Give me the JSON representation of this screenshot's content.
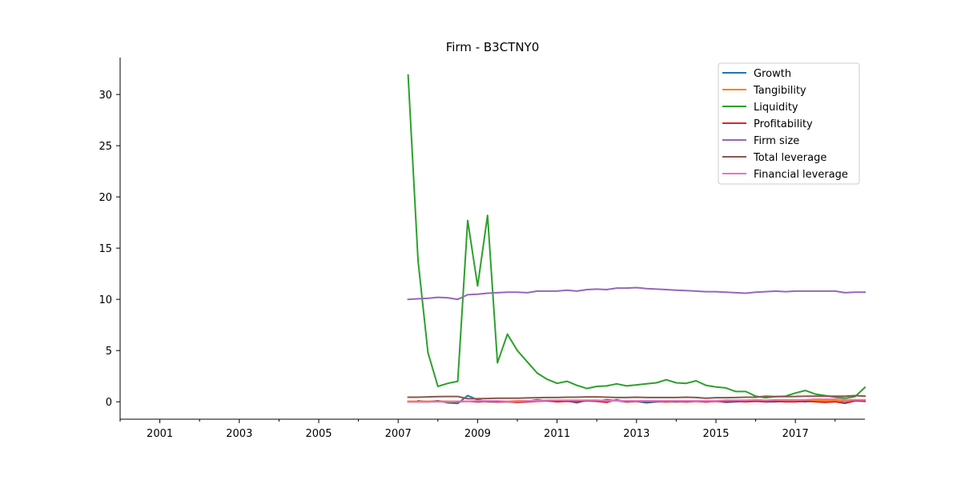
{
  "chart_data": {
    "type": "line",
    "title": "Firm - B3CTNY0",
    "xlabel": "",
    "ylabel": "",
    "xlim": [
      2000,
      2018.75
    ],
    "ylim": [
      -1.7,
      33.6
    ],
    "x_ticks": [
      2001,
      2003,
      2005,
      2007,
      2009,
      2011,
      2013,
      2015,
      2017
    ],
    "y_ticks": [
      0,
      5,
      10,
      15,
      20,
      25,
      30
    ],
    "legend_position": "top-right",
    "grid": false,
    "series": [
      {
        "name": "Growth",
        "color": "#1f77b4",
        "x": [
          2007.5,
          2007.75,
          2008.0,
          2008.25,
          2008.5,
          2008.75,
          2009.0,
          2009.25,
          2009.5,
          2009.75,
          2010.0,
          2010.25,
          2010.5,
          2010.75,
          2011.0,
          2011.25,
          2011.5,
          2011.75,
          2012.0,
          2012.25,
          2012.5,
          2012.75,
          2013.0,
          2013.25,
          2013.5,
          2013.75,
          2014.0,
          2014.25,
          2014.5,
          2014.75,
          2015.0,
          2015.25,
          2015.5,
          2015.75,
          2016.0,
          2016.25,
          2016.5,
          2016.75,
          2017.0,
          2017.25,
          2017.5,
          2017.75,
          2018.0,
          2018.25,
          2018.5,
          2018.75
        ],
        "y": [
          0.1,
          0.0,
          0.1,
          -0.1,
          -0.15,
          0.6,
          0.2,
          0.0,
          0.0,
          0.05,
          0.0,
          0.05,
          0.2,
          0.1,
          0.05,
          0.1,
          -0.1,
          0.15,
          0.05,
          0.2,
          0.1,
          0.0,
          0.05,
          -0.1,
          0.0,
          0.05,
          0.0,
          0.05,
          0.1,
          0.0,
          0.1,
          -0.05,
          0.0,
          0.05,
          0.1,
          0.0,
          0.0,
          0.05,
          0.1,
          0.0,
          0.1,
          0.0,
          0.05,
          -0.1,
          0.2,
          0.1
        ]
      },
      {
        "name": "Tangibility",
        "color": "#ff7f0e",
        "x": [
          2007.25,
          2007.5,
          2007.75,
          2008.0,
          2008.25,
          2008.5,
          2008.75,
          2009.0,
          2009.25,
          2009.5,
          2009.75,
          2010.0,
          2010.25,
          2010.5,
          2010.75,
          2011.0,
          2011.25,
          2011.5,
          2011.75,
          2012.0,
          2012.25,
          2012.5,
          2012.75,
          2013.0,
          2013.25,
          2013.5,
          2013.75,
          2014.0,
          2014.25,
          2014.5,
          2014.75,
          2015.0,
          2015.25,
          2015.5,
          2015.75,
          2016.0,
          2016.25,
          2016.5,
          2016.75,
          2017.0,
          2017.25,
          2017.5,
          2017.75,
          2018.0,
          2018.25,
          2018.5,
          2018.75
        ],
        "y": [
          0.05,
          0.05,
          0.05,
          0.05,
          0.05,
          0.05,
          0.05,
          0.05,
          0.05,
          0.05,
          0.05,
          0.1,
          0.1,
          0.1,
          0.1,
          0.1,
          0.1,
          0.1,
          0.1,
          0.1,
          0.1,
          0.1,
          0.1,
          0.1,
          0.1,
          0.1,
          0.1,
          0.1,
          0.1,
          0.1,
          0.1,
          0.1,
          0.1,
          0.1,
          0.1,
          0.1,
          0.1,
          0.1,
          0.1,
          0.1,
          0.1,
          0.1,
          0.1,
          0.1,
          0.1,
          0.1,
          0.1
        ]
      },
      {
        "name": "Liquidity",
        "color": "#2ca02c",
        "x": [
          2007.25,
          2007.5,
          2007.75,
          2008.0,
          2008.25,
          2008.5,
          2008.75,
          2009.0,
          2009.25,
          2009.5,
          2009.75,
          2010.0,
          2010.25,
          2010.5,
          2010.75,
          2011.0,
          2011.25,
          2011.5,
          2011.75,
          2012.0,
          2012.25,
          2012.5,
          2012.75,
          2013.0,
          2013.25,
          2013.5,
          2013.75,
          2014.0,
          2014.25,
          2014.5,
          2014.75,
          2015.0,
          2015.25,
          2015.5,
          2015.75,
          2016.0,
          2016.25,
          2016.5,
          2016.75,
          2017.0,
          2017.25,
          2017.5,
          2017.75,
          2018.0,
          2018.25,
          2018.5,
          2018.75
        ],
        "y": [
          31.9,
          13.8,
          4.8,
          1.5,
          1.8,
          2.0,
          17.7,
          11.3,
          18.2,
          3.8,
          6.6,
          5.0,
          3.9,
          2.8,
          2.2,
          1.8,
          2.0,
          1.6,
          1.3,
          1.5,
          1.55,
          1.75,
          1.55,
          1.65,
          1.75,
          1.85,
          2.15,
          1.85,
          1.8,
          2.05,
          1.6,
          1.45,
          1.35,
          1.0,
          1.0,
          0.55,
          0.4,
          0.5,
          0.55,
          0.85,
          1.1,
          0.75,
          0.6,
          0.45,
          0.35,
          0.5,
          1.4
        ]
      },
      {
        "name": "Profitability",
        "color": "#d62728",
        "x": [
          2007.25,
          2007.5,
          2007.75,
          2008.0,
          2008.25,
          2008.5,
          2008.75,
          2009.0,
          2009.25,
          2009.5,
          2009.75,
          2010.0,
          2010.25,
          2010.5,
          2010.75,
          2011.0,
          2011.25,
          2011.5,
          2011.75,
          2012.0,
          2012.25,
          2012.5,
          2012.75,
          2013.0,
          2013.25,
          2013.5,
          2013.75,
          2014.0,
          2014.25,
          2014.5,
          2014.75,
          2015.0,
          2015.25,
          2015.5,
          2015.75,
          2016.0,
          2016.25,
          2016.5,
          2016.75,
          2017.0,
          2017.25,
          2017.5,
          2017.75,
          2018.0,
          2018.25,
          2018.5,
          2018.75
        ],
        "y": [
          0.0,
          0.0,
          0.0,
          0.05,
          0.0,
          0.0,
          0.05,
          0.0,
          0.05,
          0.0,
          0.0,
          -0.05,
          0.0,
          0.05,
          0.1,
          0.0,
          0.05,
          0.0,
          0.1,
          0.05,
          -0.05,
          0.2,
          0.0,
          0.05,
          0.05,
          0.05,
          0.0,
          0.05,
          0.0,
          0.05,
          0.0,
          0.05,
          0.0,
          0.05,
          0.0,
          0.05,
          0.0,
          0.05,
          0.0,
          0.0,
          0.05,
          0.0,
          -0.05,
          0.0,
          -0.15,
          0.1,
          0.05
        ]
      },
      {
        "name": "Firm size",
        "color": "#9467bd",
        "x": [
          2007.25,
          2007.5,
          2007.75,
          2008.0,
          2008.25,
          2008.5,
          2008.75,
          2009.0,
          2009.25,
          2009.5,
          2009.75,
          2010.0,
          2010.25,
          2010.5,
          2010.75,
          2011.0,
          2011.25,
          2011.5,
          2011.75,
          2012.0,
          2012.25,
          2012.5,
          2012.75,
          2013.0,
          2013.25,
          2013.5,
          2013.75,
          2014.0,
          2014.25,
          2014.5,
          2014.75,
          2015.0,
          2015.25,
          2015.5,
          2015.75,
          2016.0,
          2016.25,
          2016.5,
          2016.75,
          2017.0,
          2017.25,
          2017.5,
          2017.75,
          2018.0,
          2018.25,
          2018.5,
          2018.75
        ],
        "y": [
          10.0,
          10.05,
          10.1,
          10.2,
          10.15,
          10.0,
          10.45,
          10.5,
          10.6,
          10.65,
          10.7,
          10.7,
          10.65,
          10.8,
          10.8,
          10.8,
          10.9,
          10.8,
          10.95,
          11.0,
          10.95,
          11.1,
          11.1,
          11.15,
          11.05,
          11.0,
          10.95,
          10.9,
          10.85,
          10.8,
          10.75,
          10.75,
          10.7,
          10.65,
          10.6,
          10.7,
          10.75,
          10.8,
          10.75,
          10.8,
          10.8,
          10.8,
          10.8,
          10.8,
          10.65,
          10.7,
          10.7
        ]
      },
      {
        "name": "Total leverage",
        "color": "#8c564b",
        "x": [
          2007.25,
          2007.5,
          2007.75,
          2008.0,
          2008.25,
          2008.5,
          2008.75,
          2009.0,
          2009.25,
          2009.5,
          2009.75,
          2010.0,
          2010.25,
          2010.5,
          2010.75,
          2011.0,
          2011.25,
          2011.5,
          2011.75,
          2012.0,
          2012.25,
          2012.5,
          2012.75,
          2013.0,
          2013.25,
          2013.5,
          2013.75,
          2014.0,
          2014.25,
          2014.5,
          2014.75,
          2015.0,
          2015.25,
          2015.5,
          2015.75,
          2016.0,
          2016.25,
          2016.5,
          2016.75,
          2017.0,
          2017.25,
          2017.5,
          2017.75,
          2018.0,
          2018.25,
          2018.5,
          2018.75
        ],
        "y": [
          0.45,
          0.45,
          0.48,
          0.5,
          0.52,
          0.52,
          0.3,
          0.3,
          0.32,
          0.35,
          0.35,
          0.35,
          0.38,
          0.4,
          0.42,
          0.42,
          0.45,
          0.45,
          0.48,
          0.48,
          0.45,
          0.42,
          0.42,
          0.45,
          0.42,
          0.42,
          0.42,
          0.42,
          0.45,
          0.42,
          0.35,
          0.4,
          0.4,
          0.42,
          0.45,
          0.45,
          0.55,
          0.5,
          0.5,
          0.52,
          0.55,
          0.55,
          0.55,
          0.55,
          0.55,
          0.6,
          0.55
        ]
      },
      {
        "name": "Financial leverage",
        "color": "#e377c2",
        "x": [
          2007.25,
          2007.5,
          2007.75,
          2008.0,
          2008.25,
          2008.5,
          2008.75,
          2009.0,
          2009.25,
          2009.5,
          2009.75,
          2010.0,
          2010.25,
          2010.5,
          2010.75,
          2011.0,
          2011.25,
          2011.5,
          2011.75,
          2012.0,
          2012.25,
          2012.5,
          2012.75,
          2013.0,
          2013.25,
          2013.5,
          2013.75,
          2014.0,
          2014.25,
          2014.5,
          2014.75,
          2015.0,
          2015.25,
          2015.5,
          2015.75,
          2016.0,
          2016.25,
          2016.5,
          2016.75,
          2017.0,
          2017.25,
          2017.5,
          2017.75,
          2018.0,
          2018.25,
          2018.5,
          2018.75
        ],
        "y": [
          0.0,
          0.0,
          0.0,
          0.0,
          0.0,
          0.05,
          0.05,
          0.1,
          0.1,
          0.1,
          0.05,
          0.05,
          0.1,
          0.1,
          0.15,
          0.15,
          0.15,
          0.15,
          0.15,
          0.15,
          0.1,
          0.1,
          0.1,
          0.1,
          0.1,
          0.1,
          0.1,
          0.1,
          0.1,
          0.1,
          0.1,
          0.1,
          0.15,
          0.15,
          0.15,
          0.2,
          0.15,
          0.2,
          0.2,
          0.2,
          0.2,
          0.25,
          0.25,
          0.25,
          0.2,
          0.2,
          0.2
        ]
      }
    ]
  }
}
